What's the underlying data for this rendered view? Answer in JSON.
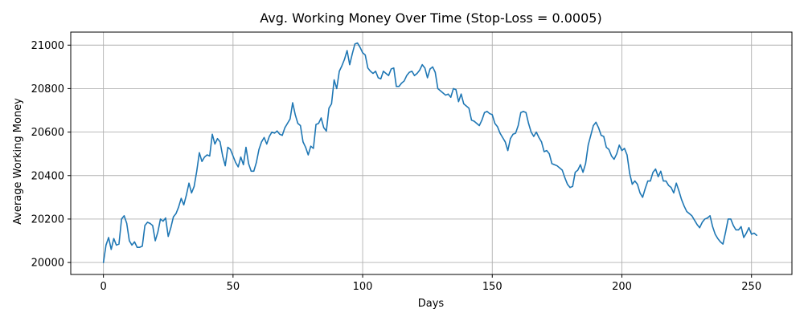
{
  "chart_data": {
    "type": "line",
    "title": "Avg. Working Money Over Time (Stop-Loss = 0.0005)",
    "xlabel": "Days",
    "ylabel": "Average Working Money",
    "xlim": [
      -12.6,
      265.6
    ],
    "ylim": [
      19945,
      21060
    ],
    "xticks": [
      0,
      50,
      100,
      150,
      200,
      250
    ],
    "yticks": [
      20000,
      20200,
      20400,
      20600,
      20800,
      21000
    ],
    "grid": true,
    "series": [
      {
        "name": "Average Working Money",
        "color": "#1f77b4",
        "x": [
          0,
          1,
          2,
          3,
          4,
          5,
          6,
          7,
          8,
          9,
          10,
          11,
          12,
          13,
          14,
          15,
          16,
          17,
          18,
          19,
          20,
          21,
          22,
          23,
          24,
          25,
          26,
          27,
          28,
          29,
          30,
          31,
          32,
          33,
          34,
          35,
          36,
          37,
          38,
          39,
          40,
          41,
          42,
          43,
          44,
          45,
          46,
          47,
          48,
          49,
          50,
          51,
          52,
          53,
          54,
          55,
          56,
          57,
          58,
          59,
          60,
          61,
          62,
          63,
          64,
          65,
          66,
          67,
          68,
          69,
          70,
          71,
          72,
          73,
          74,
          75,
          76,
          77,
          78,
          79,
          80,
          81,
          82,
          83,
          84,
          85,
          86,
          87,
          88,
          89,
          90,
          91,
          92,
          93,
          94,
          95,
          96,
          97,
          98,
          99,
          100,
          101,
          102,
          103,
          104,
          105,
          106,
          107,
          108,
          109,
          110,
          111,
          112,
          113,
          114,
          115,
          116,
          117,
          118,
          119,
          120,
          121,
          122,
          123,
          124,
          125,
          126,
          127,
          128,
          129,
          130,
          131,
          132,
          133,
          134,
          135,
          136,
          137,
          138,
          139,
          140,
          141,
          142,
          143,
          144,
          145,
          146,
          147,
          148,
          149,
          150,
          151,
          152,
          153,
          154,
          155,
          156,
          157,
          158,
          159,
          160,
          161,
          162,
          163,
          164,
          165,
          166,
          167,
          168,
          169,
          170,
          171,
          172,
          173,
          174,
          175,
          176,
          177,
          178,
          179,
          180,
          181,
          182,
          183,
          184,
          185,
          186,
          187,
          188,
          189,
          190,
          191,
          192,
          193,
          194,
          195,
          196,
          197,
          198,
          199,
          200,
          201,
          202,
          203,
          204,
          205,
          206,
          207,
          208,
          209,
          210,
          211,
          212,
          213,
          214,
          215,
          216,
          217,
          218,
          219,
          220,
          221,
          222,
          223,
          224,
          225,
          226,
          227,
          228,
          229,
          230,
          231,
          232,
          233,
          234,
          235,
          236,
          237,
          238,
          239,
          240,
          241,
          242,
          243,
          244,
          245,
          246,
          247,
          248,
          249,
          250,
          251,
          252
        ],
        "y": [
          20000,
          20080,
          20115,
          20060,
          20110,
          20080,
          20085,
          20200,
          20215,
          20180,
          20100,
          20080,
          20095,
          20070,
          20070,
          20075,
          20170,
          20185,
          20180,
          20170,
          20100,
          20140,
          20200,
          20190,
          20205,
          20120,
          20160,
          20210,
          20225,
          20255,
          20295,
          20265,
          20310,
          20365,
          20320,
          20350,
          20420,
          20505,
          20465,
          20485,
          20495,
          20490,
          20590,
          20545,
          20570,
          20555,
          20490,
          20445,
          20530,
          20520,
          20490,
          20460,
          20440,
          20485,
          20450,
          20530,
          20455,
          20420,
          20420,
          20460,
          20520,
          20555,
          20575,
          20545,
          20580,
          20600,
          20595,
          20605,
          20590,
          20585,
          20620,
          20640,
          20660,
          20735,
          20680,
          20640,
          20630,
          20555,
          20530,
          20495,
          20535,
          20525,
          20635,
          20640,
          20665,
          20620,
          20605,
          20710,
          20730,
          20840,
          20800,
          20880,
          20905,
          20935,
          20975,
          20910,
          20960,
          21005,
          21010,
          20990,
          20965,
          20955,
          20895,
          20880,
          20870,
          20880,
          20850,
          20845,
          20880,
          20870,
          20860,
          20890,
          20895,
          20810,
          20810,
          20825,
          20835,
          20860,
          20875,
          20880,
          20860,
          20870,
          20885,
          20910,
          20895,
          20850,
          20890,
          20900,
          20875,
          20800,
          20790,
          20780,
          20770,
          20775,
          20760,
          20800,
          20795,
          20740,
          20775,
          20730,
          20720,
          20710,
          20655,
          20650,
          20640,
          20630,
          20655,
          20690,
          20695,
          20685,
          20680,
          20640,
          20625,
          20595,
          20575,
          20555,
          20515,
          20570,
          20590,
          20595,
          20630,
          20690,
          20695,
          20690,
          20640,
          20600,
          20580,
          20600,
          20575,
          20555,
          20510,
          20515,
          20500,
          20455,
          20450,
          20445,
          20435,
          20425,
          20390,
          20360,
          20345,
          20350,
          20415,
          20425,
          20450,
          20415,
          20455,
          20540,
          20585,
          20630,
          20645,
          20620,
          20585,
          20580,
          20530,
          20520,
          20490,
          20475,
          20500,
          20540,
          20515,
          20525,
          20495,
          20410,
          20360,
          20375,
          20360,
          20320,
          20300,
          20340,
          20375,
          20375,
          20415,
          20430,
          20395,
          20420,
          20375,
          20375,
          20355,
          20345,
          20320,
          20365,
          20330,
          20290,
          20260,
          20235,
          20225,
          20215,
          20195,
          20175,
          20160,
          20185,
          20200,
          20205,
          20215,
          20165,
          20130,
          20110,
          20095,
          20085,
          20140,
          20200,
          20200,
          20170,
          20150,
          20150,
          20165,
          20115,
          20135,
          20160,
          20130,
          20135,
          20125
        ]
      }
    ]
  }
}
